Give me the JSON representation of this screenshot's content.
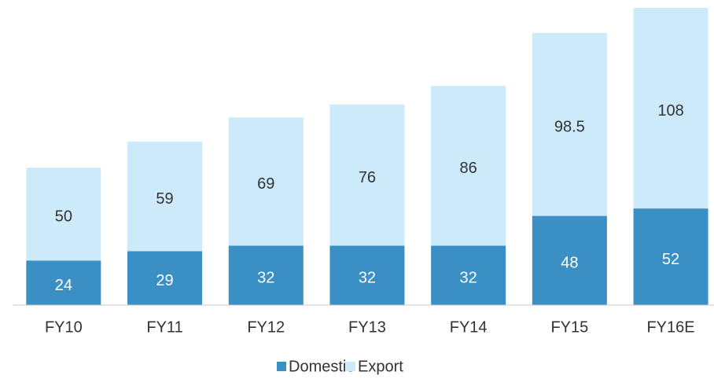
{
  "chart_data": {
    "type": "stacked_bar",
    "categories": [
      "FY10",
      "FY11",
      "FY12",
      "FY13",
      "FY14",
      "FY15",
      "FY16E"
    ],
    "series": [
      {
        "name": "Domestic",
        "color": "#3a8fc4",
        "values": [
          24,
          29,
          32,
          32,
          32,
          48,
          52
        ]
      },
      {
        "name": "Export",
        "color": "#cdeafb",
        "values": [
          50,
          59,
          69,
          76,
          86,
          98.5,
          108
        ]
      }
    ],
    "legend": "bottom"
  }
}
